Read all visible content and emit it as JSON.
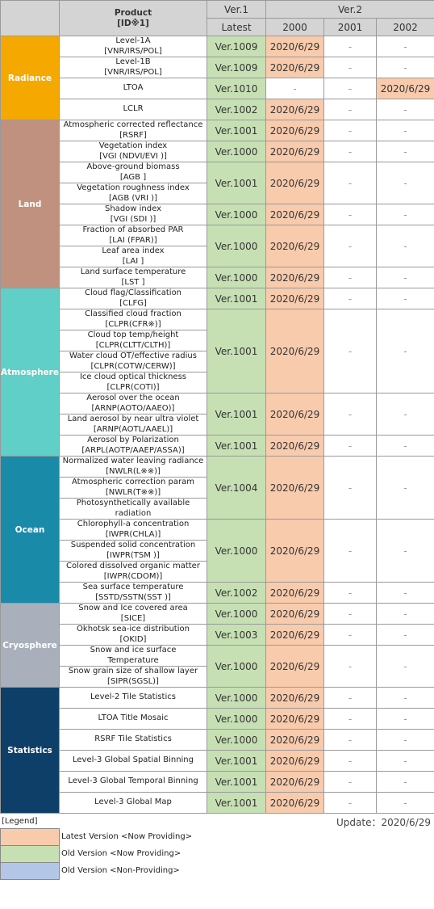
{
  "header": {
    "product": "Product",
    "product_id": "[ID※1]",
    "ver1": "Ver.1",
    "latest": "Ver.1 Latest",
    "latest_label": "Latest",
    "ver2": "Ver.2",
    "years": [
      "2000",
      "2001",
      "2002"
    ]
  },
  "groups": [
    {
      "name": "Radiance",
      "blocks": [
        {
          "products": [
            [
              "Level-1A",
              "[VNR/IRS/POL]"
            ]
          ],
          "cells": [
            "Ver.1009",
            "2020/6/29",
            "-",
            "-"
          ]
        },
        {
          "products": [
            [
              "Level-1B",
              "[VNR/IRS/POL]"
            ]
          ],
          "cells": [
            "Ver.1009",
            "2020/6/29",
            "-",
            "-"
          ]
        },
        {
          "products": [
            [
              "LTOA"
            ]
          ],
          "cells": [
            "Ver.1010",
            "-",
            "-",
            "2020/6/29"
          ]
        },
        {
          "products": [
            [
              "LCLR"
            ]
          ],
          "cells": [
            "Ver.1002",
            "2020/6/29",
            "-",
            "-"
          ]
        }
      ]
    },
    {
      "name": "Land",
      "blocks": [
        {
          "products": [
            [
              "Atmospheric corrected reflectance",
              "[RSRF]"
            ]
          ],
          "cells": [
            "Ver.1001",
            "2020/6/29",
            "-",
            "-"
          ]
        },
        {
          "products": [
            [
              "Vegetation index",
              "[VGI (NDVI/EVI )]"
            ]
          ],
          "cells": [
            "Ver.1000",
            "2020/6/29",
            "-",
            "-"
          ]
        },
        {
          "products": [
            [
              "Above-ground biomass",
              "[AGB ]"
            ],
            [
              "Vegetation roughness index",
              "[AGB (VRI )]"
            ]
          ],
          "cells": [
            "Ver.1001",
            "2020/6/29",
            "-",
            "-"
          ]
        },
        {
          "products": [
            [
              "Shadow index",
              "[VGI (SDI )]"
            ]
          ],
          "cells": [
            "Ver.1000",
            "2020/6/29",
            "-",
            "-"
          ]
        },
        {
          "products": [
            [
              "Fraction of absorbed PAR",
              "[LAI (FPAR)]"
            ],
            [
              "Leaf area index",
              "[LAI ]"
            ]
          ],
          "cells": [
            "Ver.1000",
            "2020/6/29",
            "-",
            "-"
          ]
        },
        {
          "products": [
            [
              "Land surface temperature",
              "[LST ]"
            ]
          ],
          "cells": [
            "Ver.1000",
            "2020/6/29",
            "-",
            "-"
          ]
        }
      ]
    },
    {
      "name": "Atmosphere",
      "blocks": [
        {
          "products": [
            [
              "Cloud flag/Classification",
              "[CLFG]"
            ]
          ],
          "cells": [
            "Ver.1001",
            "2020/6/29",
            "-",
            "-"
          ]
        },
        {
          "products": [
            [
              "Classified cloud fraction",
              "[CLPR(CFR※)]"
            ],
            [
              "Cloud top temp/height",
              "[CLPR(CLTT/CLTH)]"
            ],
            [
              "Water cloud OT/effective radius",
              "[CLPR(COTW/CERW)]"
            ],
            [
              "Ice cloud optical thickness",
              "[CLPR(COTI)]"
            ]
          ],
          "cells": [
            "Ver.1001",
            "2020/6/29",
            "-",
            "-"
          ]
        },
        {
          "products": [
            [
              "Aerosol over the ocean",
              "[ARNP(AOTO/AAEO)]"
            ],
            [
              "Land aerosol by near ultra violet",
              "[ARNP(AOTL/AAEL)]"
            ]
          ],
          "cells": [
            "Ver.1001",
            "2020/6/29",
            "-",
            "-"
          ]
        },
        {
          "products": [
            [
              "Aerosol by Polarization",
              "[ARPL(AOTP/AAEP/ASSA)]"
            ]
          ],
          "cells": [
            "Ver.1001",
            "2020/6/29",
            "-",
            "-"
          ]
        }
      ]
    },
    {
      "name": "Ocean",
      "blocks": [
        {
          "products": [
            [
              "Normalized water leaving radiance",
              "[NWLR(L※※)]"
            ],
            [
              "Atmospheric correction param",
              "[NWLR(T※※)]"
            ],
            [
              "Photosynthetically available",
              "radiation"
            ]
          ],
          "cells": [
            "Ver.1004",
            "2020/6/29",
            "-",
            "-"
          ]
        },
        {
          "products": [
            [
              "Chlorophyll-a concentration",
              "[IWPR(CHLA)]"
            ],
            [
              "Suspended solid concentration",
              "[IWPR(TSM )]"
            ],
            [
              "Colored dissolved organic matter",
              "[IWPR(CDOM)]"
            ]
          ],
          "cells": [
            "Ver.1000",
            "2020/6/29",
            "-",
            "-"
          ]
        },
        {
          "products": [
            [
              "Sea surface temperature",
              "[SSTD/SSTN(SST )]"
            ]
          ],
          "cells": [
            "Ver.1002",
            "2020/6/29",
            "-",
            "-"
          ]
        }
      ]
    },
    {
      "name": "Cryosphere",
      "blocks": [
        {
          "products": [
            [
              "Snow and Ice covered area",
              "[SICE]"
            ]
          ],
          "cells": [
            "Ver.1000",
            "2020/6/29",
            "-",
            "-"
          ]
        },
        {
          "products": [
            [
              "Okhotsk sea-ice distribution",
              "[OKID]"
            ]
          ],
          "cells": [
            "Ver.1003",
            "2020/6/29",
            "-",
            "-"
          ]
        },
        {
          "products": [
            [
              "Snow and ice surface",
              "Temperature"
            ],
            [
              "Snow grain size of shallow layer",
              "[SIPR(SGSL)]"
            ]
          ],
          "cells": [
            "Ver.1000",
            "2020/6/29",
            "-",
            "-"
          ]
        }
      ]
    },
    {
      "name": "Statistics",
      "blocks": [
        {
          "products": [
            [
              "Level-2 Tile Statistics"
            ]
          ],
          "cells": [
            "Ver.1000",
            "2020/6/29",
            "-",
            "-"
          ]
        },
        {
          "products": [
            [
              "LTOA Title Mosaic"
            ]
          ],
          "cells": [
            "Ver.1000",
            "2020/6/29",
            "-",
            "-"
          ]
        },
        {
          "products": [
            [
              "RSRF Tile Statistics"
            ]
          ],
          "cells": [
            "Ver.1000",
            "2020/6/29",
            "-",
            "-"
          ]
        },
        {
          "products": [
            [
              "Level-3 Global Spatial Binning"
            ]
          ],
          "cells": [
            "Ver.1001",
            "2020/6/29",
            "-",
            "-"
          ]
        },
        {
          "products": [
            [
              "Level-3 Global Temporal Binning"
            ]
          ],
          "cells": [
            "Ver.1001",
            "2020/6/29",
            "-",
            "-"
          ]
        },
        {
          "products": [
            [
              "Level-3 Global Map"
            ]
          ],
          "cells": [
            "Ver.1001",
            "2020/6/29",
            "-",
            "-"
          ]
        }
      ]
    }
  ],
  "legend": {
    "title": "[Legend]",
    "update": "Update：2020/6/29",
    "items": [
      "Latest Version <Now Providing>",
      "Old Version <Now Providing>",
      "Old Version <Non-Providing>"
    ]
  }
}
